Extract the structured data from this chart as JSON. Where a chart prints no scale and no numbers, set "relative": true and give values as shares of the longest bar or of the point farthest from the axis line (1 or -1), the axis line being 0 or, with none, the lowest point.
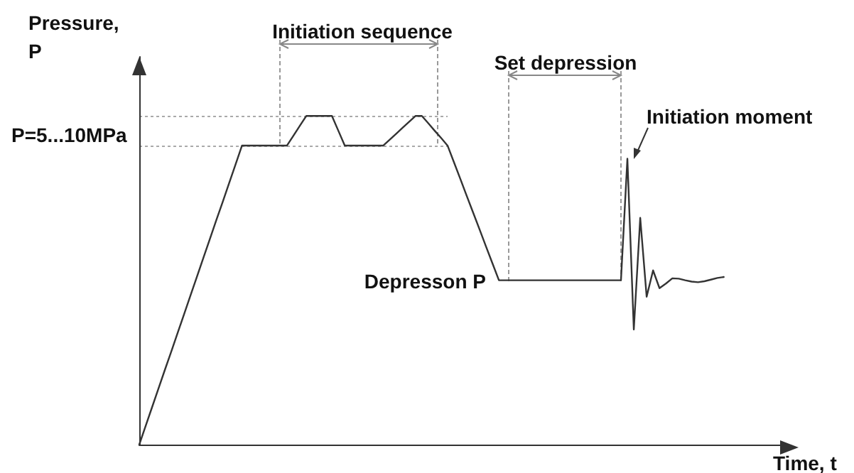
{
  "chart_data": {
    "type": "line",
    "relative": true,
    "xlabel": "Time, t",
    "ylabel": "Pressure, P",
    "marker": "none",
    "line_style": "solid",
    "categories": [
      null,
      null,
      null,
      null,
      null,
      null,
      null,
      null,
      null,
      null,
      null,
      null,
      null,
      null,
      null,
      null,
      null,
      null,
      null,
      null,
      null,
      null,
      null,
      null,
      null,
      null,
      null,
      null,
      null,
      null,
      null,
      null,
      null,
      null,
      null,
      null,
      null,
      null,
      null,
      null,
      null,
      null,
      null,
      null,
      null,
      null,
      null,
      null,
      null,
      null,
      null,
      null,
      null,
      null,
      null,
      null,
      null,
      null,
      null,
      null,
      null,
      null,
      null,
      null,
      null,
      null,
      null,
      null,
      null,
      null,
      null,
      null,
      null,
      null,
      null,
      null,
      null,
      null,
      null,
      null,
      null,
      null,
      null,
      null,
      null,
      null,
      null,
      null,
      null,
      null,
      null,
      null,
      null,
      null,
      null,
      null,
      null,
      null,
      null,
      null,
      null
    ],
    "series": [
      {
        "color": "#333333",
        "values": [
          0,
          0.057,
          0.114,
          0.171,
          0.228,
          0.284,
          0.341,
          0.398,
          0.455,
          0.512,
          0.569,
          0.626,
          0.683,
          0.739,
          0.796,
          0.853,
          0.91,
          0.91,
          0.91,
          0.91,
          0.91,
          0.91,
          0.91,
          0.91,
          0.94,
          0.97,
          1.0,
          1.0,
          1.0,
          1.0,
          1.0,
          0.955,
          0.91,
          0.91,
          0.91,
          0.91,
          0.91,
          0.91,
          0.91,
          0.928,
          0.946,
          0.964,
          0.982,
          1.0,
          1.0,
          0.978,
          0.955,
          0.933,
          0.91,
          0.859,
          0.808,
          0.756,
          0.705,
          0.654,
          0.602,
          0.551,
          0.5,
          0.5,
          0.5,
          0.5,
          0.5,
          0.5,
          0.5,
          0.5,
          0.5,
          0.5,
          0.5,
          0.5,
          0.5,
          0.5,
          0.5,
          0.5,
          0.5,
          0.5,
          0.5,
          0.5,
          0.87,
          0.35,
          0.69,
          0.45,
          0.53,
          0.476,
          0.49,
          0.506,
          0.505,
          0.5,
          0.496,
          0.494,
          0.497,
          0.502,
          0.507,
          0.51,
          null,
          null,
          null,
          null,
          null,
          null,
          null,
          null,
          null
        ]
      }
    ],
    "annotations": [
      "P=5...10MPa",
      "Initiation sequence",
      "Set depression",
      "Initiation moment",
      "Depresson P"
    ]
  }
}
